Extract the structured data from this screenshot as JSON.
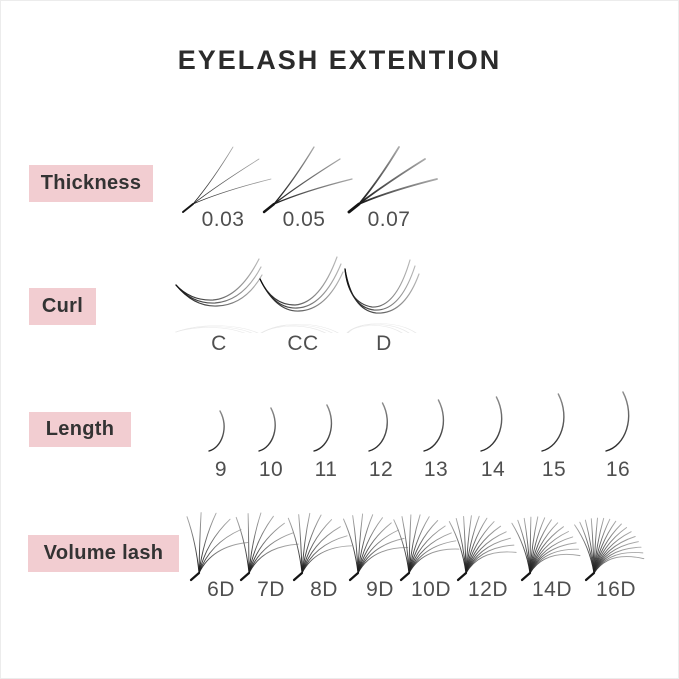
{
  "title": "EYELASH EXTENTION",
  "colors": {
    "tag_pink": "#f2cdd1",
    "title_text": "#2b2b2b",
    "tag_text": "#333333",
    "value_text": "#4f4f4f",
    "lash_dark": "#141414",
    "lash_light": "#ababab"
  },
  "rows": [
    {
      "id": "thickness",
      "label": "Thickness",
      "items": [
        "0.03",
        "0.05",
        "0.07"
      ]
    },
    {
      "id": "curl",
      "label": "Curl",
      "items": [
        "C",
        "CC",
        "D"
      ]
    },
    {
      "id": "length",
      "label": "Length",
      "items": [
        "9",
        "10",
        "11",
        "12",
        "13",
        "14",
        "15",
        "16"
      ]
    },
    {
      "id": "volume",
      "label": "Volume lash",
      "items": [
        "6D",
        "7D",
        "8D",
        "9D",
        "10D",
        "12D",
        "14D",
        "16D"
      ],
      "strands": [
        6,
        7,
        8,
        9,
        10,
        12,
        14,
        16
      ]
    }
  ]
}
